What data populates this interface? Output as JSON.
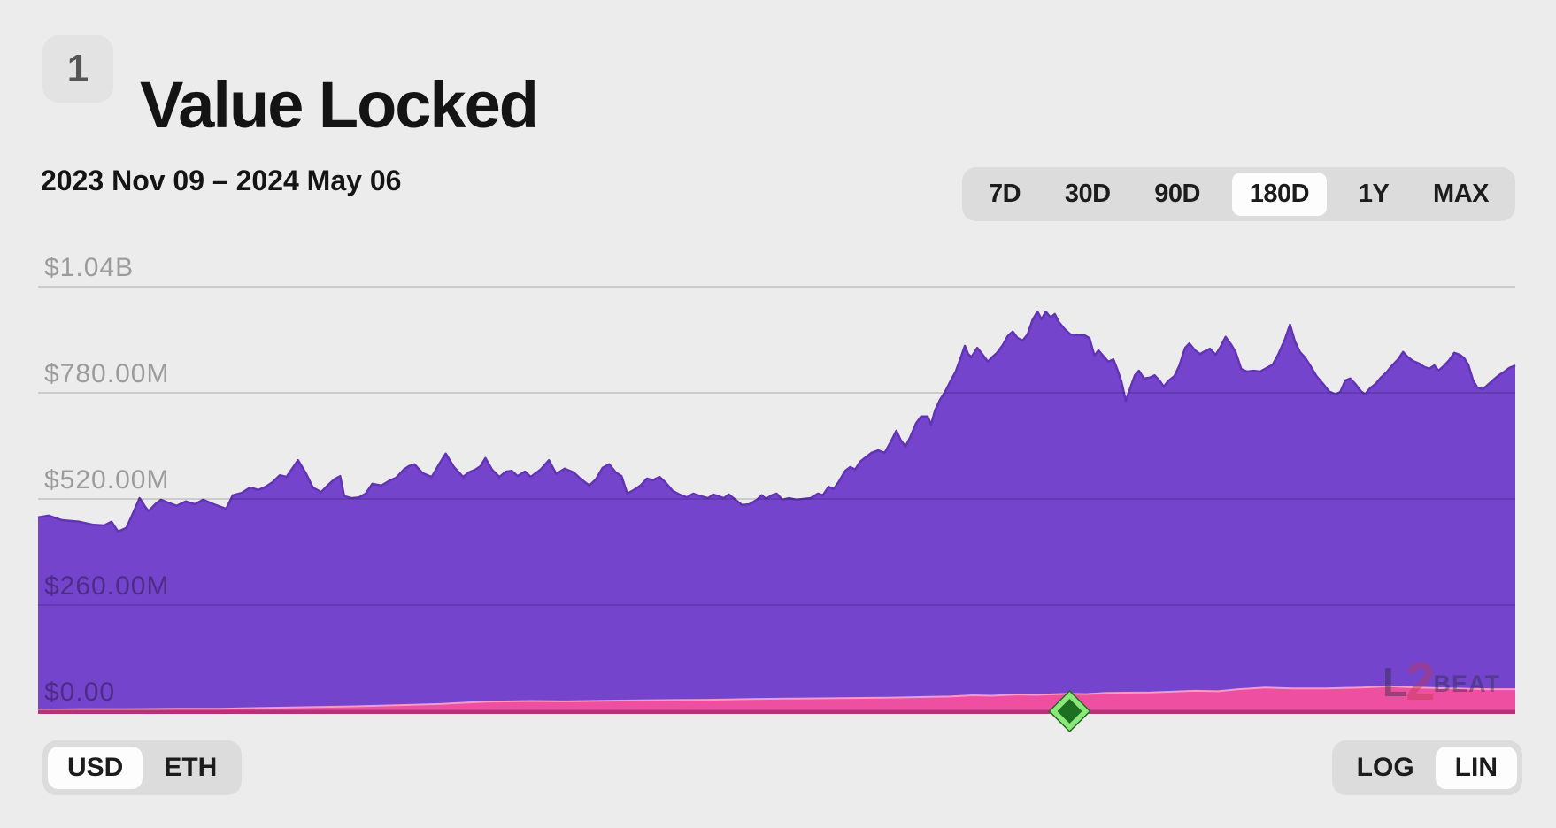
{
  "page": {
    "background": "#ececec"
  },
  "header": {
    "index_badge": "1",
    "title": "Value Locked"
  },
  "toolbar": {
    "date_range": "2023 Nov 09 – 2024 May 06",
    "range_options": [
      "7D",
      "30D",
      "90D",
      "180D",
      "1Y",
      "MAX"
    ],
    "selected_range": "180D"
  },
  "unit_toggle": {
    "options": [
      "USD",
      "ETH"
    ],
    "selected": "USD"
  },
  "scale_toggle": {
    "options": [
      "LOG",
      "LIN"
    ],
    "selected": "LIN"
  },
  "watermark": {
    "l": "L",
    "two": "2",
    "beat": "BEAT"
  },
  "colors": {
    "area_purple": "#7544CC",
    "area_purple_stroke": "#6234B5",
    "area_pink": "#EE4FA0",
    "area_pink_stroke": "#F79AC9",
    "baseline": "#B53278",
    "grid_line": "rgba(0,0,0,0.18)",
    "axis_label": "rgba(0,0,0,0.34)",
    "milestone_fill": "#1F6F23",
    "milestone_border": "#8BE87B",
    "milestone_outline": "#23691f"
  },
  "chart_data": {
    "type": "area",
    "title": "Value Locked",
    "x_start": "2023 Nov 09",
    "x_end": "2024 May 06",
    "x_span_days": 179,
    "unit": "USD (millions)",
    "scale": "linear",
    "grid": true,
    "ylim_musd": [
      0,
      1040
    ],
    "y_ticks": [
      {
        "label": "$1.04B",
        "value": 1040
      },
      {
        "label": "$780.00M",
        "value": 780
      },
      {
        "label": "$520.00M",
        "value": 520
      },
      {
        "label": "$260.00M",
        "value": 260
      },
      {
        "label": "$0.00",
        "value": 0
      }
    ],
    "grid_values_musd": [
      1040,
      780,
      520,
      260
    ],
    "milestone": {
      "day": 125,
      "shape": "diamond"
    },
    "series": [
      {
        "name": "total-value-locked",
        "points": [
          [
            0,
            475
          ],
          [
            1.3,
            479
          ],
          [
            2.9,
            468
          ],
          [
            5,
            464
          ],
          [
            6.6,
            457
          ],
          [
            8,
            455
          ],
          [
            8.9,
            464
          ],
          [
            9.7,
            440
          ],
          [
            10.7,
            449
          ],
          [
            11.5,
            485
          ],
          [
            12.3,
            522
          ],
          [
            13,
            500
          ],
          [
            13.4,
            490
          ],
          [
            14.3,
            509
          ],
          [
            14.9,
            518
          ],
          [
            16,
            509
          ],
          [
            16.8,
            503
          ],
          [
            17.9,
            514
          ],
          [
            19,
            507
          ],
          [
            20,
            518
          ],
          [
            21.3,
            507
          ],
          [
            22.2,
            500
          ],
          [
            22.8,
            496
          ],
          [
            23.6,
            529
          ],
          [
            24.7,
            535
          ],
          [
            25.7,
            548
          ],
          [
            26.7,
            542
          ],
          [
            27.6,
            550
          ],
          [
            28.4,
            561
          ],
          [
            29.3,
            578
          ],
          [
            30.1,
            574
          ],
          [
            31.5,
            615
          ],
          [
            32.5,
            581
          ],
          [
            33.3,
            548
          ],
          [
            34.3,
            537
          ],
          [
            35.2,
            555
          ],
          [
            35.9,
            568
          ],
          [
            36.6,
            576
          ],
          [
            37.1,
            527
          ],
          [
            38,
            522
          ],
          [
            38.9,
            524
          ],
          [
            39.7,
            533
          ],
          [
            40.5,
            557
          ],
          [
            41.6,
            553
          ],
          [
            42.7,
            566
          ],
          [
            43.4,
            572
          ],
          [
            44.3,
            592
          ],
          [
            44.9,
            600
          ],
          [
            45.6,
            605
          ],
          [
            46.6,
            583
          ],
          [
            47.7,
            574
          ],
          [
            48.6,
            605
          ],
          [
            49.4,
            631
          ],
          [
            50.4,
            598
          ],
          [
            51.5,
            574
          ],
          [
            52.2,
            585
          ],
          [
            53,
            592
          ],
          [
            53.6,
            600
          ],
          [
            54.2,
            620
          ],
          [
            55,
            592
          ],
          [
            55.9,
            574
          ],
          [
            56.7,
            587
          ],
          [
            57.4,
            589
          ],
          [
            58.1,
            576
          ],
          [
            59,
            587
          ],
          [
            59.7,
            574
          ],
          [
            60.9,
            592
          ],
          [
            61.9,
            615
          ],
          [
            62.8,
            581
          ],
          [
            63.8,
            594
          ],
          [
            64.9,
            585
          ],
          [
            65.8,
            568
          ],
          [
            66.8,
            553
          ],
          [
            67.6,
            568
          ],
          [
            68.4,
            596
          ],
          [
            69.2,
            605
          ],
          [
            70,
            585
          ],
          [
            70.7,
            576
          ],
          [
            71.4,
            533
          ],
          [
            72.2,
            542
          ],
          [
            73,
            553
          ],
          [
            73.8,
            570
          ],
          [
            74.5,
            566
          ],
          [
            75.3,
            574
          ],
          [
            76,
            561
          ],
          [
            76.9,
            540
          ],
          [
            77.7,
            531
          ],
          [
            78.6,
            524
          ],
          [
            79.4,
            533
          ],
          [
            80.3,
            527
          ],
          [
            81.2,
            522
          ],
          [
            81.8,
            531
          ],
          [
            82.4,
            527
          ],
          [
            83.1,
            522
          ],
          [
            83.7,
            531
          ],
          [
            84.5,
            518
          ],
          [
            85.3,
            505
          ],
          [
            86.2,
            507
          ],
          [
            87.1,
            518
          ],
          [
            87.7,
            529
          ],
          [
            88.2,
            520
          ],
          [
            88.9,
            529
          ],
          [
            89.5,
            533
          ],
          [
            90.2,
            518
          ],
          [
            91,
            522
          ],
          [
            91.9,
            518
          ],
          [
            92.7,
            520
          ],
          [
            93.6,
            522
          ],
          [
            94.5,
            533
          ],
          [
            95.1,
            529
          ],
          [
            95.8,
            550
          ],
          [
            96.4,
            544
          ],
          [
            97,
            561
          ],
          [
            97.8,
            589
          ],
          [
            98.4,
            598
          ],
          [
            99,
            592
          ],
          [
            99.6,
            611
          ],
          [
            100.3,
            622
          ],
          [
            101,
            633
          ],
          [
            101.8,
            639
          ],
          [
            102.6,
            633
          ],
          [
            103.3,
            659
          ],
          [
            104,
            687
          ],
          [
            104.5,
            665
          ],
          [
            105.1,
            648
          ],
          [
            105.7,
            672
          ],
          [
            106.4,
            706
          ],
          [
            107,
            722
          ],
          [
            107.8,
            722
          ],
          [
            108.2,
            702
          ],
          [
            108.7,
            737
          ],
          [
            109.3,
            763
          ],
          [
            109.9,
            782
          ],
          [
            110.5,
            806
          ],
          [
            111.2,
            832
          ],
          [
            111.7,
            860
          ],
          [
            112.3,
            895
          ],
          [
            112.7,
            875
          ],
          [
            113.1,
            867
          ],
          [
            113.8,
            890
          ],
          [
            114.4,
            875
          ],
          [
            115.1,
            856
          ],
          [
            115.6,
            867
          ],
          [
            116.2,
            878
          ],
          [
            116.9,
            897
          ],
          [
            117.5,
            919
          ],
          [
            118.1,
            930
          ],
          [
            118.7,
            914
          ],
          [
            119.3,
            908
          ],
          [
            119.9,
            923
          ],
          [
            120.5,
            958
          ],
          [
            121.1,
            979
          ],
          [
            121.6,
            960
          ],
          [
            122.1,
            979
          ],
          [
            122.7,
            964
          ],
          [
            123.2,
            973
          ],
          [
            123.7,
            953
          ],
          [
            124.4,
            936
          ],
          [
            125.1,
            923
          ],
          [
            126,
            921
          ],
          [
            126.8,
            921
          ],
          [
            127.4,
            914
          ],
          [
            128,
            871
          ],
          [
            128.5,
            884
          ],
          [
            129.2,
            867
          ],
          [
            129.7,
            856
          ],
          [
            130.3,
            862
          ],
          [
            130.8,
            836
          ],
          [
            131.3,
            806
          ],
          [
            131.8,
            760
          ],
          [
            132.4,
            795
          ],
          [
            132.9,
            823
          ],
          [
            133.4,
            834
          ],
          [
            134,
            815
          ],
          [
            134.7,
            817
          ],
          [
            135.3,
            823
          ],
          [
            135.9,
            810
          ],
          [
            136.4,
            795
          ],
          [
            137,
            810
          ],
          [
            137.7,
            821
          ],
          [
            138.3,
            847
          ],
          [
            139,
            890
          ],
          [
            139.5,
            901
          ],
          [
            140.2,
            884
          ],
          [
            140.8,
            875
          ],
          [
            141.4,
            882
          ],
          [
            142,
            888
          ],
          [
            142.7,
            873
          ],
          [
            143.3,
            893
          ],
          [
            143.9,
            917
          ],
          [
            144.6,
            897
          ],
          [
            145.1,
            880
          ],
          [
            145.8,
            838
          ],
          [
            146.5,
            832
          ],
          [
            147.3,
            834
          ],
          [
            148.1,
            832
          ],
          [
            148.9,
            841
          ],
          [
            149.6,
            849
          ],
          [
            150.3,
            875
          ],
          [
            151.1,
            912
          ],
          [
            151.7,
            947
          ],
          [
            152.3,
            906
          ],
          [
            152.9,
            880
          ],
          [
            153.5,
            867
          ],
          [
            154.2,
            845
          ],
          [
            154.9,
            821
          ],
          [
            155.7,
            802
          ],
          [
            156.4,
            784
          ],
          [
            157.2,
            776
          ],
          [
            157.8,
            782
          ],
          [
            158.4,
            810
          ],
          [
            159,
            815
          ],
          [
            159.6,
            802
          ],
          [
            160.3,
            784
          ],
          [
            160.8,
            776
          ],
          [
            161.4,
            791
          ],
          [
            162.1,
            802
          ],
          [
            162.7,
            817
          ],
          [
            163.4,
            830
          ],
          [
            164,
            845
          ],
          [
            164.8,
            862
          ],
          [
            165.4,
            880
          ],
          [
            166,
            867
          ],
          [
            166.6,
            858
          ],
          [
            167.4,
            851
          ],
          [
            168,
            843
          ],
          [
            168.6,
            839
          ],
          [
            169.2,
            847
          ],
          [
            169.7,
            834
          ],
          [
            170.3,
            845
          ],
          [
            171,
            860
          ],
          [
            171.6,
            878
          ],
          [
            172.3,
            873
          ],
          [
            172.8,
            865
          ],
          [
            173.3,
            849
          ],
          [
            173.9,
            810
          ],
          [
            174.4,
            793
          ],
          [
            175.1,
            789
          ],
          [
            175.7,
            800
          ],
          [
            176.4,
            813
          ],
          [
            177,
            823
          ],
          [
            177.7,
            832
          ],
          [
            178.3,
            841
          ],
          [
            179,
            847
          ]
        ]
      },
      {
        "name": "bottom-series",
        "points": [
          [
            0,
            4
          ],
          [
            5,
            5
          ],
          [
            11,
            5
          ],
          [
            16.8,
            6
          ],
          [
            22,
            6
          ],
          [
            27.6,
            8
          ],
          [
            33,
            10
          ],
          [
            38.3,
            12
          ],
          [
            44,
            15
          ],
          [
            49,
            18
          ],
          [
            54,
            23
          ],
          [
            59.7,
            25
          ],
          [
            64,
            24
          ],
          [
            70.4,
            26
          ],
          [
            75.8,
            27
          ],
          [
            81.2,
            28
          ],
          [
            86.5,
            30
          ],
          [
            91.9,
            31
          ],
          [
            97.3,
            32
          ],
          [
            102.6,
            33
          ],
          [
            108,
            35
          ],
          [
            110.5,
            36
          ],
          [
            113.3,
            39
          ],
          [
            115.5,
            38
          ],
          [
            118.7,
            41
          ],
          [
            121,
            40
          ],
          [
            124.8,
            43
          ],
          [
            127,
            42
          ],
          [
            129.4,
            45
          ],
          [
            134.8,
            46
          ],
          [
            140.2,
            50
          ],
          [
            143,
            49
          ],
          [
            145.5,
            54
          ],
          [
            148.7,
            58
          ],
          [
            151.9,
            56
          ],
          [
            156.2,
            56
          ],
          [
            160.5,
            58
          ],
          [
            163.7,
            61
          ],
          [
            166.9,
            58
          ],
          [
            171.2,
            56
          ],
          [
            175.5,
            54
          ],
          [
            179,
            54
          ]
        ]
      }
    ]
  }
}
